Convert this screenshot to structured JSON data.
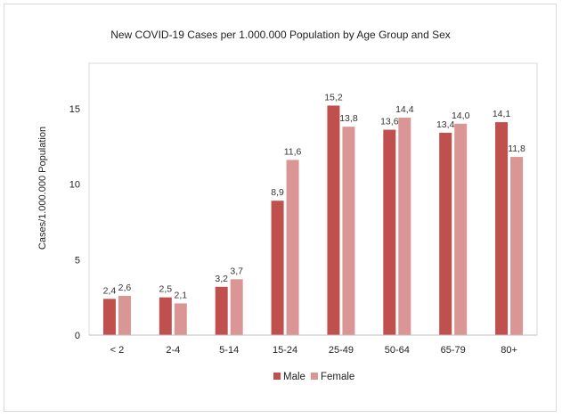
{
  "chart_data": {
    "type": "bar",
    "title": "New COVID-19 Cases per 1.000.000 Population by Age Group and Sex",
    "xlabel": "",
    "ylabel": "Cases/1.000.000 Population",
    "ylim": [
      0,
      18
    ],
    "yticks": [
      0,
      5,
      10,
      15
    ],
    "grid": false,
    "legend_position": "bottom",
    "categories": [
      "< 2",
      "2-4",
      "5-14",
      "15-24",
      "25-49",
      "50-64",
      "65-79",
      "80+"
    ],
    "series": [
      {
        "name": "Male",
        "color": "#c0504d",
        "values": [
          2.4,
          2.5,
          3.2,
          8.9,
          15.2,
          13.6,
          13.4,
          14.1
        ],
        "labels": [
          "2,4",
          "2,5",
          "3,2",
          "8,9",
          "15,2",
          "13,6",
          "13,4",
          "14,1"
        ]
      },
      {
        "name": "Female",
        "color": "#d99694",
        "values": [
          2.6,
          2.1,
          3.7,
          11.6,
          13.8,
          14.4,
          14.0,
          11.8
        ],
        "labels": [
          "2,6",
          "2,1",
          "3,7",
          "11,6",
          "13,8",
          "14,4",
          "14,0",
          "11,8"
        ]
      }
    ]
  }
}
